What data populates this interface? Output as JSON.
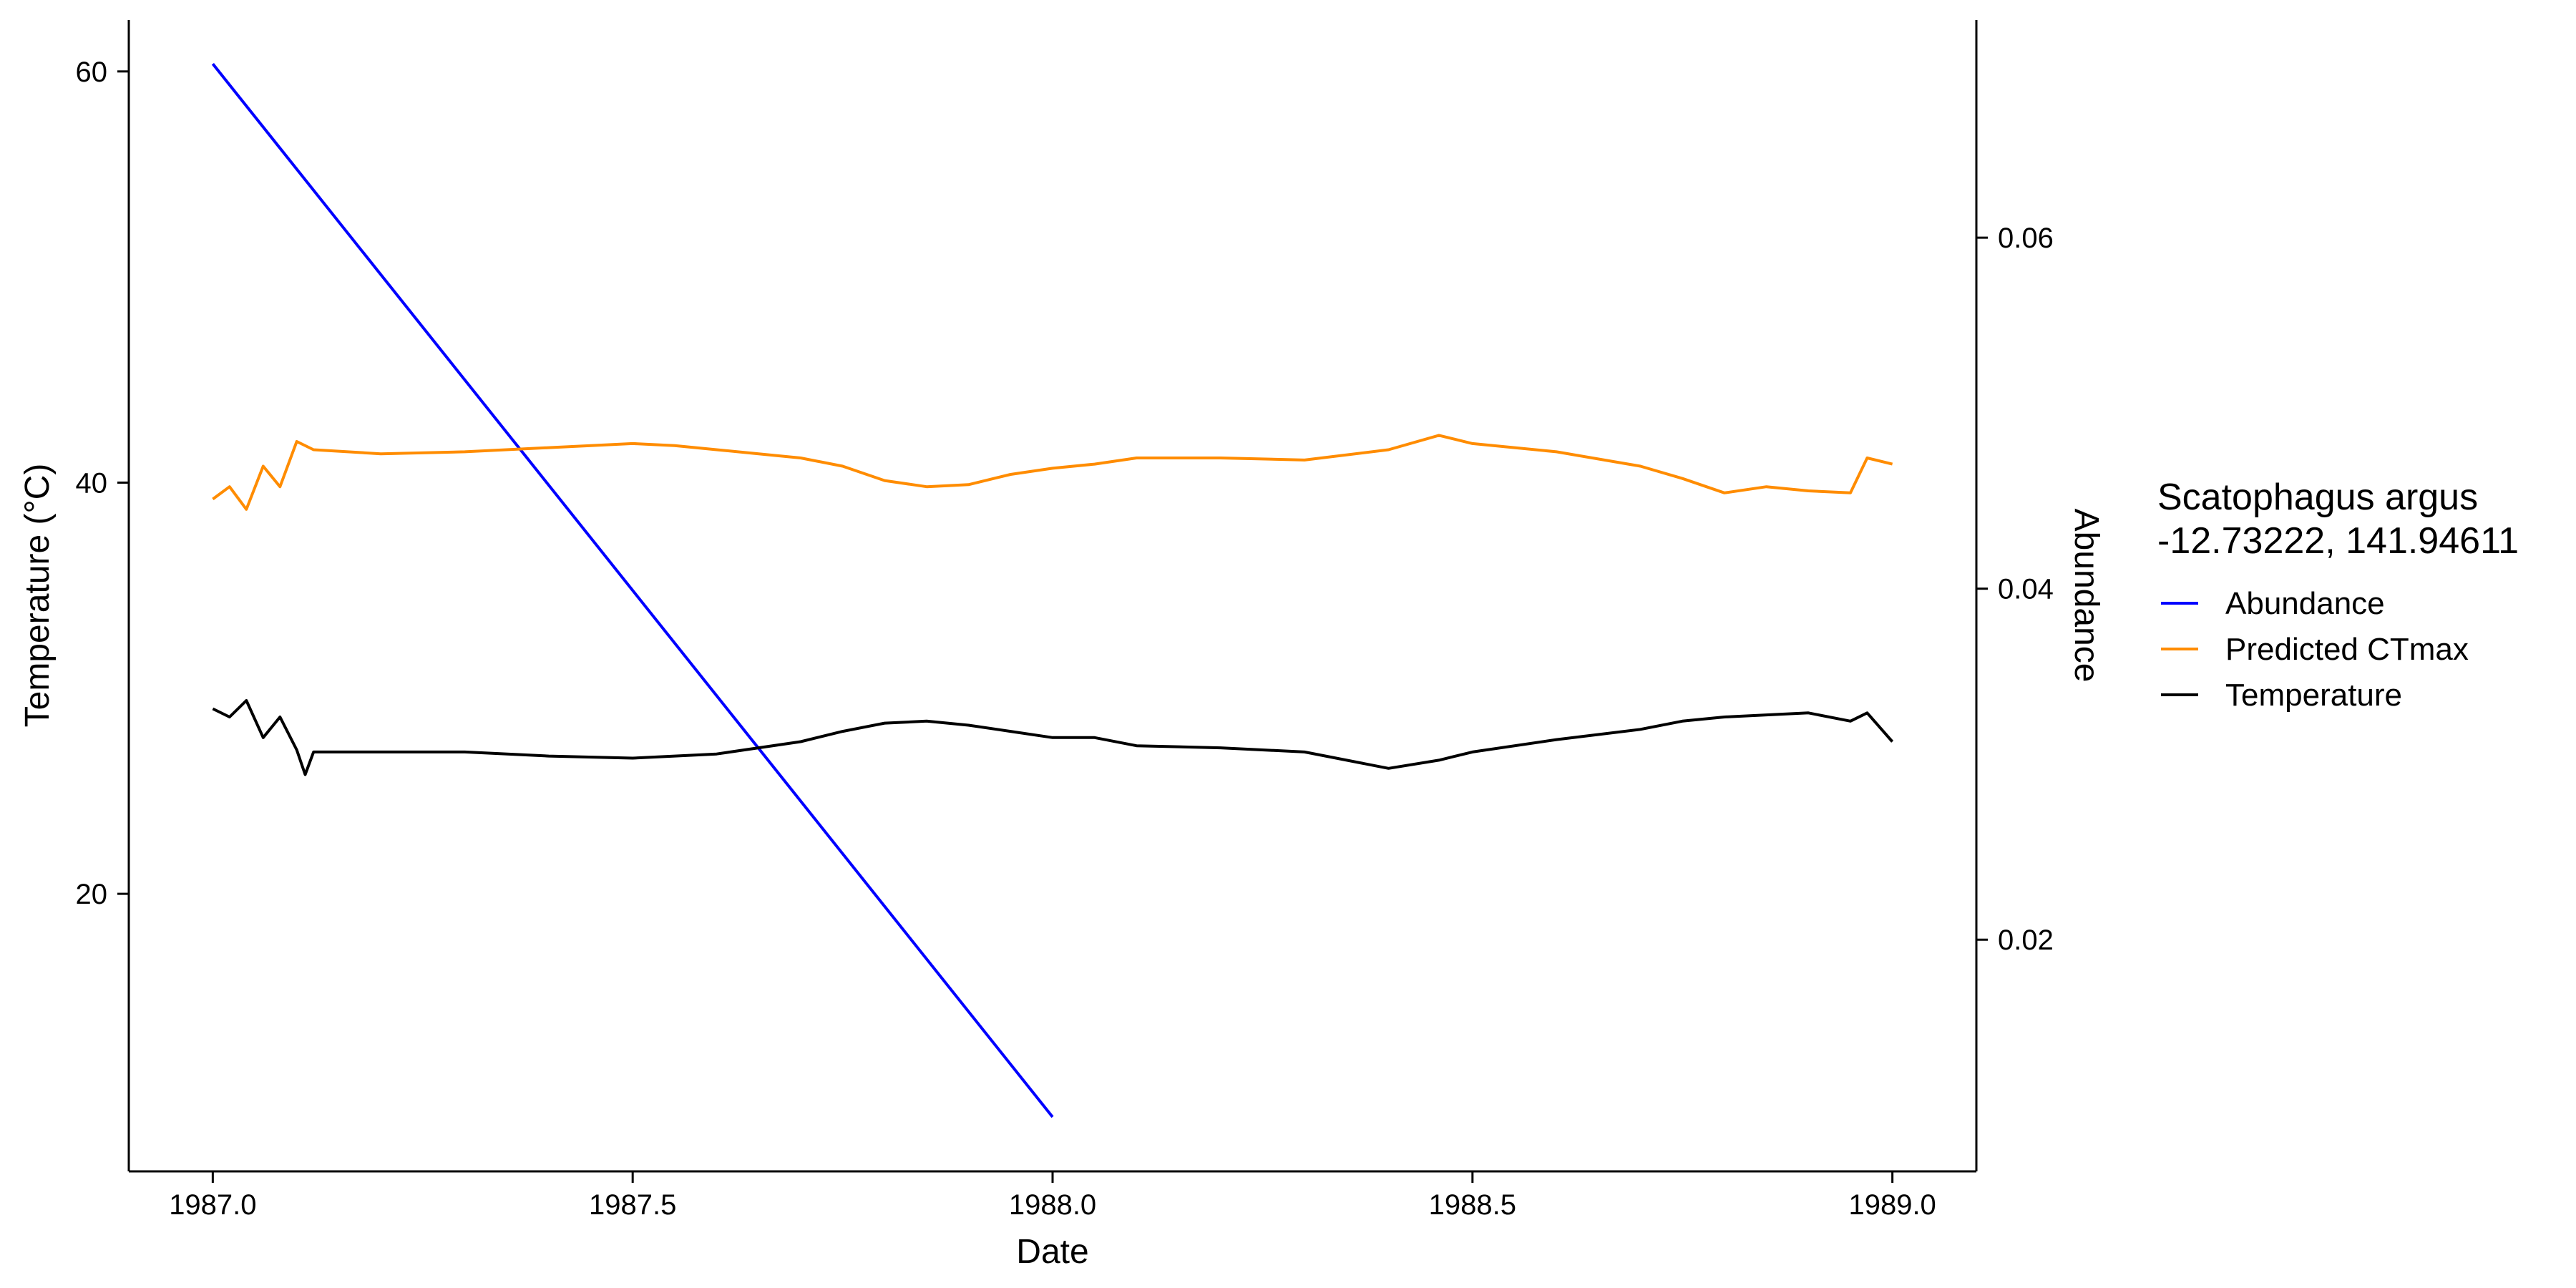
{
  "chart_data": {
    "type": "line",
    "xlabel": "Date",
    "ylabel": "Temperature (°C)",
    "y2label": "Abundance",
    "x_ticks": [
      "1987.0",
      "1987.5",
      "1988.0",
      "1988.5",
      "1989.0"
    ],
    "y_ticks": [
      "20",
      "40",
      "60"
    ],
    "y2_ticks": [
      "0.02",
      "0.04",
      "0.06"
    ],
    "xlim": [
      1986.9,
      1989.1
    ],
    "ylim": [
      6.5,
      62.5
    ],
    "y2lim": [
      0.0068,
      0.0724
    ],
    "grid": false,
    "legend_position": "right",
    "legend": {
      "title_line1": "Scatophagus argus",
      "title_line2": "-12.73222, 141.94611",
      "entries": [
        "Abundance",
        "Predicted CTmax",
        "Temperature"
      ]
    },
    "colors": {
      "abundance": "#0000ff",
      "predicted_ctmax": "#ff8c00",
      "temperature": "#000000",
      "y2_axis_title": "#0000ff"
    },
    "series": [
      {
        "name": "Abundance",
        "axis": "right",
        "x": [
          1987.0,
          1988.0
        ],
        "y": [
          0.0699,
          0.0099
        ]
      },
      {
        "name": "Predicted CTmax",
        "axis": "left",
        "x": [
          1987.0,
          1987.02,
          1987.04,
          1987.06,
          1987.08,
          1987.1,
          1987.12,
          1987.2,
          1987.3,
          1987.4,
          1987.5,
          1987.55,
          1987.6,
          1987.7,
          1987.75,
          1987.8,
          1987.85,
          1987.9,
          1987.95,
          1988.0,
          1988.05,
          1988.1,
          1988.2,
          1988.3,
          1988.4,
          1988.46,
          1988.5,
          1988.6,
          1988.7,
          1988.75,
          1988.8,
          1988.85,
          1988.9,
          1988.95,
          1988.97,
          1989.0
        ],
        "y": [
          39.2,
          39.8,
          38.7,
          40.8,
          39.8,
          42.0,
          41.6,
          41.4,
          41.5,
          41.7,
          41.9,
          41.8,
          41.6,
          41.2,
          40.8,
          40.1,
          39.8,
          39.9,
          40.4,
          40.7,
          40.9,
          41.2,
          41.2,
          41.1,
          41.6,
          42.3,
          41.9,
          41.5,
          40.8,
          40.2,
          39.5,
          39.8,
          39.6,
          39.5,
          41.2,
          40.9
        ]
      },
      {
        "name": "Temperature",
        "axis": "left",
        "x": [
          1987.0,
          1987.02,
          1987.04,
          1987.06,
          1987.08,
          1987.1,
          1987.11,
          1987.12,
          1987.2,
          1987.3,
          1987.4,
          1987.5,
          1987.55,
          1987.6,
          1987.7,
          1987.75,
          1987.8,
          1987.85,
          1987.9,
          1987.95,
          1988.0,
          1988.05,
          1988.1,
          1988.2,
          1988.3,
          1988.4,
          1988.46,
          1988.5,
          1988.6,
          1988.7,
          1988.75,
          1988.8,
          1988.85,
          1988.9,
          1988.95,
          1988.97,
          1989.0
        ],
        "y": [
          29.0,
          28.6,
          29.4,
          27.6,
          28.6,
          27.0,
          25.8,
          26.9,
          26.9,
          26.9,
          26.7,
          26.6,
          26.7,
          26.8,
          27.4,
          27.9,
          28.3,
          28.4,
          28.2,
          27.9,
          27.6,
          27.6,
          27.2,
          27.1,
          26.9,
          26.1,
          26.5,
          26.9,
          27.5,
          28.0,
          28.4,
          28.6,
          28.7,
          28.8,
          28.4,
          28.8,
          27.4
        ]
      }
    ]
  }
}
